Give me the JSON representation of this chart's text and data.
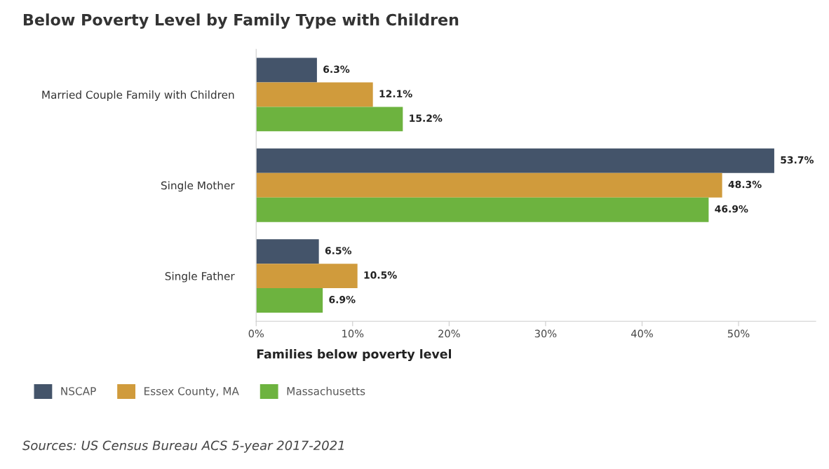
{
  "chart_data": {
    "type": "bar",
    "orientation": "horizontal",
    "title": "Below Poverty Level by Family Type with Children",
    "categories": [
      "Married Couple Family with Children",
      "Single Mother",
      "Single Father"
    ],
    "series": [
      {
        "name": "NSCAP",
        "color": "#44546a",
        "values": [
          6.3,
          53.7,
          6.5
        ],
        "value_labels": [
          "6.3%",
          "53.7%",
          "6.5%"
        ]
      },
      {
        "name": "Essex County, MA",
        "color": "#d09b3c",
        "values": [
          12.1,
          48.3,
          10.5
        ],
        "value_labels": [
          "12.1%",
          "48.3%",
          "10.5%"
        ]
      },
      {
        "name": "Massachusetts",
        "color": "#6db33f",
        "values": [
          15.2,
          46.9,
          6.9
        ],
        "value_labels": [
          "15.2%",
          "46.9%",
          "6.9%"
        ]
      }
    ],
    "xlabel": "Families below poverty level",
    "xlim": [
      0,
      58
    ],
    "xticks": [
      {
        "value": 0,
        "label": "0%"
      },
      {
        "value": 10,
        "label": "10%"
      },
      {
        "value": 20,
        "label": "20%"
      },
      {
        "value": 30,
        "label": "30%"
      },
      {
        "value": 40,
        "label": "40%"
      },
      {
        "value": 50,
        "label": "50%"
      }
    ],
    "grid": false,
    "legend": "bottom",
    "annotations": [
      "Sources: US Census Bureau ACS 5-year 2017-2021"
    ]
  }
}
